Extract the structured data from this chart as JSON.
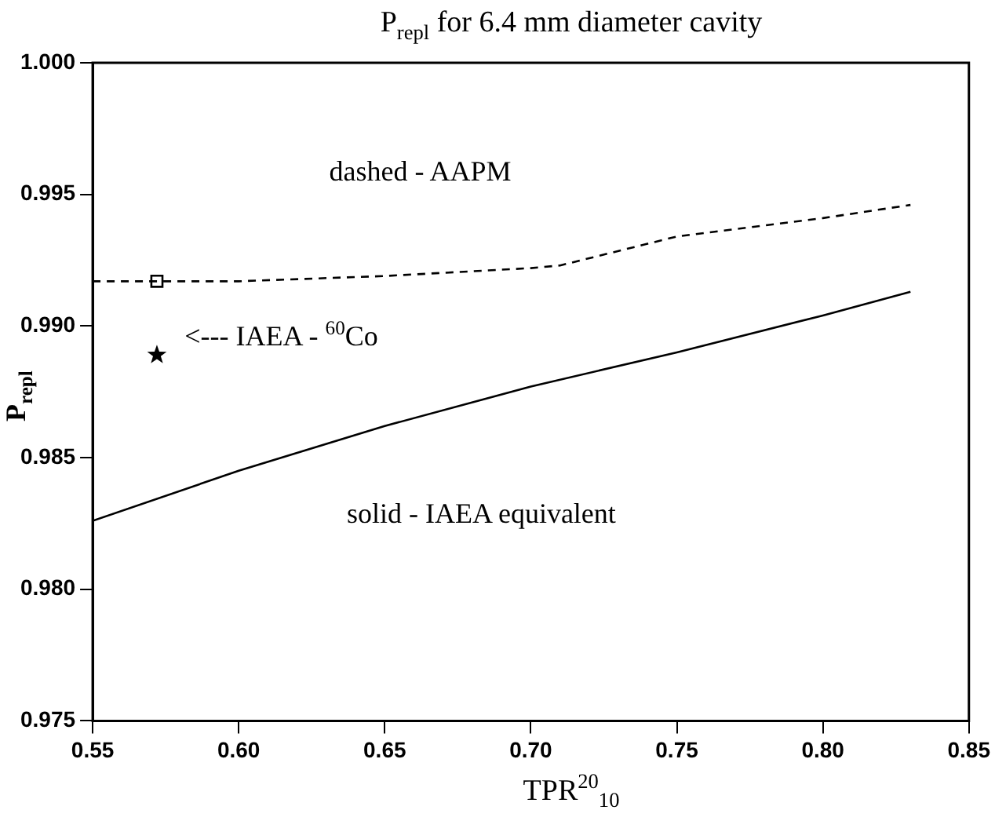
{
  "chart_data": {
    "type": "line",
    "title": "P$_{repl}$ for 6.4 mm diameter cavity",
    "xlabel": "TPR$^{20}$$_{10}$",
    "ylabel": "P$_{repl}$",
    "annotations": [
      "dashed - AAPM",
      "<--- IAEA - $^{60}$Co",
      "solid - IAEA equivalent"
    ],
    "series": [
      {
        "type": "line",
        "color": "#000000",
        "line_style": "dashed",
        "marker": "none",
        "x": [
          0.55,
          0.6,
          0.65,
          0.7,
          0.71,
          0.75,
          0.8,
          0.83
        ],
        "values": [
          0.9917,
          0.9917,
          0.9919,
          0.9922,
          0.9923,
          0.9934,
          0.9941,
          0.9946
        ]
      },
      {
        "type": "line",
        "color": "#000000",
        "line_style": "solid",
        "marker": "none",
        "x": [
          0.55,
          0.6,
          0.65,
          0.7,
          0.75,
          0.8,
          0.83
        ],
        "values": [
          0.9826,
          0.9845,
          0.9862,
          0.9877,
          0.989,
          0.9904,
          0.9913
        ]
      },
      {
        "type": "scatter",
        "color": "#000000",
        "marker": "square",
        "x": [
          0.572
        ],
        "values": [
          0.9917
        ]
      },
      {
        "type": "scatter",
        "color": "#000000",
        "marker": "star",
        "x": [
          0.572
        ],
        "values": [
          0.9889
        ]
      }
    ],
    "xlim": [
      0.55,
      0.85
    ],
    "xticks": [
      {
        "value": 0.55,
        "label": "0.55"
      },
      {
        "value": 0.6,
        "label": "0.60"
      },
      {
        "value": 0.65,
        "label": "0.65"
      },
      {
        "value": 0.7,
        "label": "0.70"
      },
      {
        "value": 0.75,
        "label": "0.75"
      },
      {
        "value": 0.8,
        "label": "0.80"
      },
      {
        "value": 0.85,
        "label": "0.85"
      }
    ],
    "ylim": [
      0.975,
      1.0
    ],
    "yticks": [
      0.975,
      {
        "value": 0.98,
        "label": "0.980"
      },
      0.985,
      {
        "value": 0.99,
        "label": "0.990"
      },
      0.995,
      {
        "value": 1.0,
        "label": "1.000"
      }
    ],
    "grid": false,
    "legend": false
  }
}
